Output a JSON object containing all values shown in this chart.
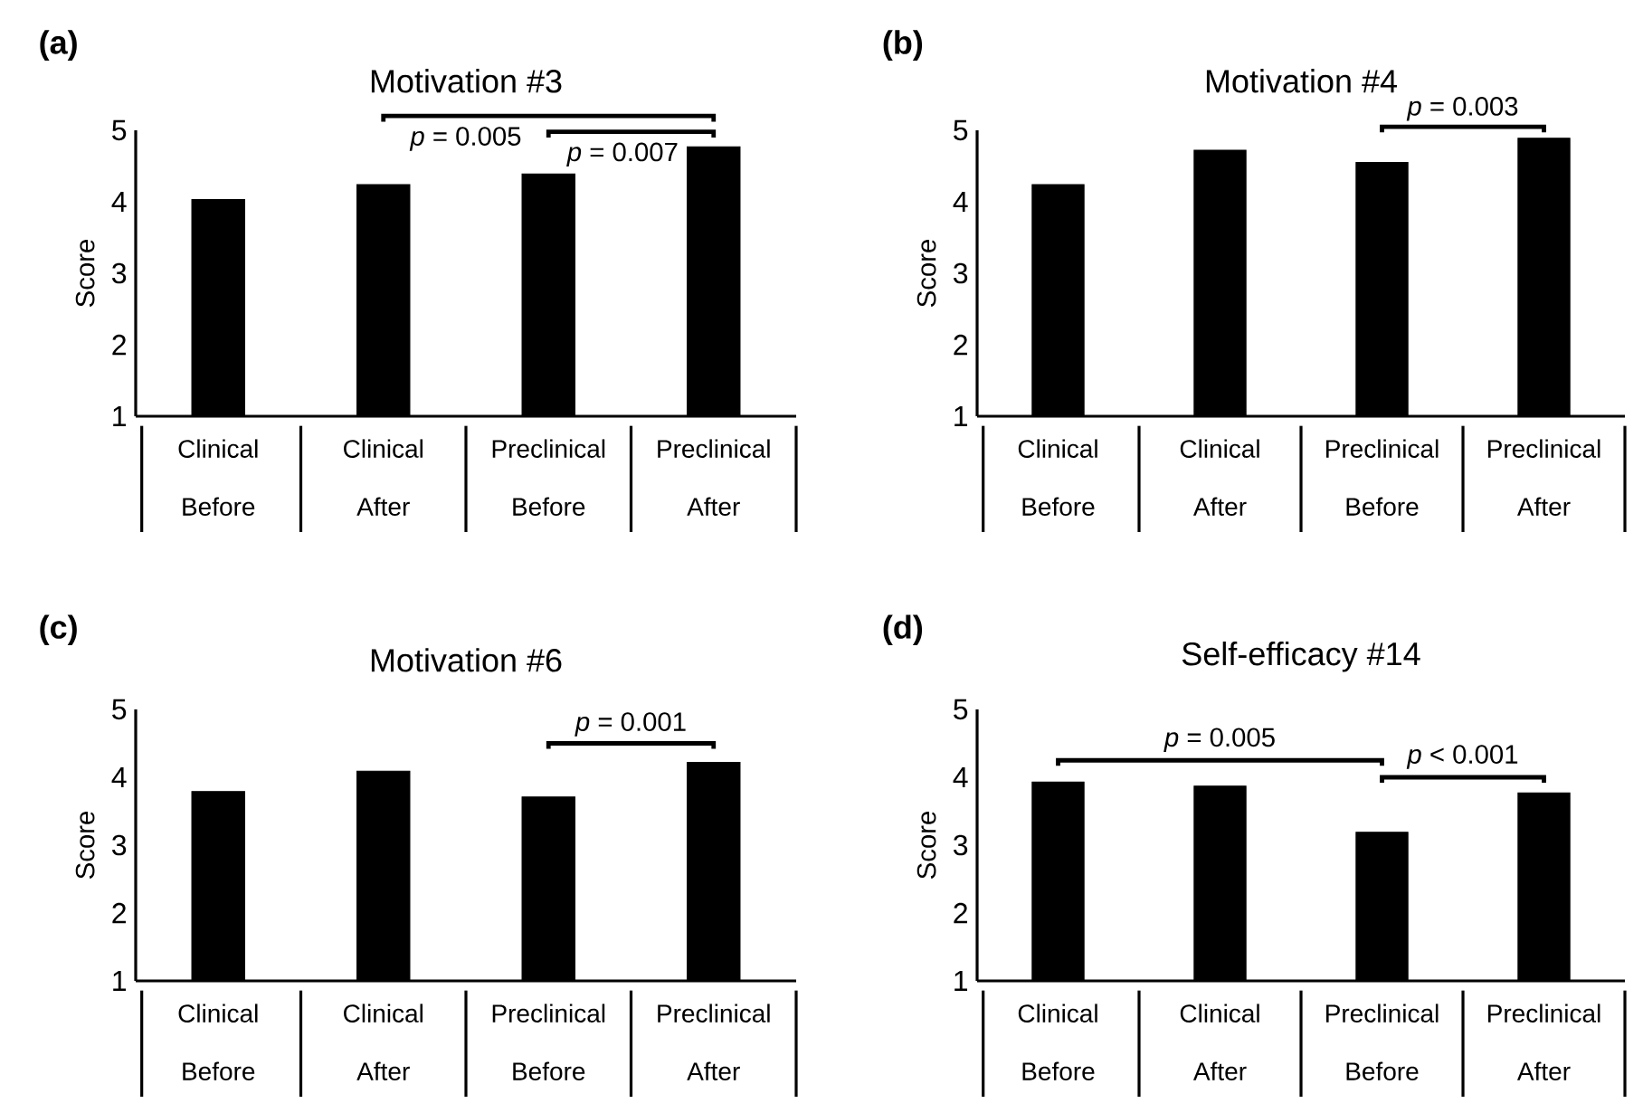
{
  "chart_data": [
    {
      "type": "bar",
      "title": "Motivation #3",
      "ylabel": "Score",
      "categories": [
        "Clinical Before",
        "Clinical After",
        "Preclinical Before",
        "Preclinical After"
      ],
      "values": [
        4.03,
        4.24,
        4.39,
        4.77
      ],
      "color": "#000000",
      "ylim": [
        1,
        5
      ],
      "yticks": [
        1,
        2,
        3,
        4,
        5
      ],
      "annotations": [
        "(a)",
        "*p* = 0.005",
        "*p* = 0.007"
      ]
    },
    {
      "type": "bar",
      "title": "Motivation #4",
      "ylabel": "Score",
      "categories": [
        "Clinical Before",
        "Clinical After",
        "Preclinical Before",
        "Preclinical After"
      ],
      "values": [
        4.24,
        4.72,
        4.55,
        4.89
      ],
      "color": "#000000",
      "ylim": [
        1,
        5
      ],
      "yticks": [
        1,
        2,
        3,
        4,
        5
      ],
      "annotations": [
        "(b)",
        "*p* = 0.003"
      ]
    },
    {
      "type": "bar",
      "title": "Motivation #6",
      "ylabel": "Score",
      "categories": [
        "Clinical Before",
        "Clinical After",
        "Preclinical Before",
        "Preclinical After"
      ],
      "values": [
        3.79,
        4.09,
        3.71,
        4.22
      ],
      "color": "#000000",
      "ylim": [
        1,
        5
      ],
      "yticks": [
        1,
        2,
        3,
        4,
        5
      ],
      "annotations": [
        "(c)",
        "*p* = 0.001"
      ]
    },
    {
      "type": "bar",
      "title": "Self-efficacy #14",
      "ylabel": "Score",
      "categories": [
        "Clinical Before",
        "Clinical After",
        "Preclinical Before",
        "Preclinical After"
      ],
      "values": [
        3.93,
        3.87,
        3.19,
        3.77
      ],
      "color": "#000000",
      "ylim": [
        1,
        5
      ],
      "yticks": [
        1,
        2,
        3,
        4,
        5
      ],
      "annotations": [
        "(d)",
        "*p* = 0.005",
        "*p* < 0.001"
      ]
    }
  ]
}
